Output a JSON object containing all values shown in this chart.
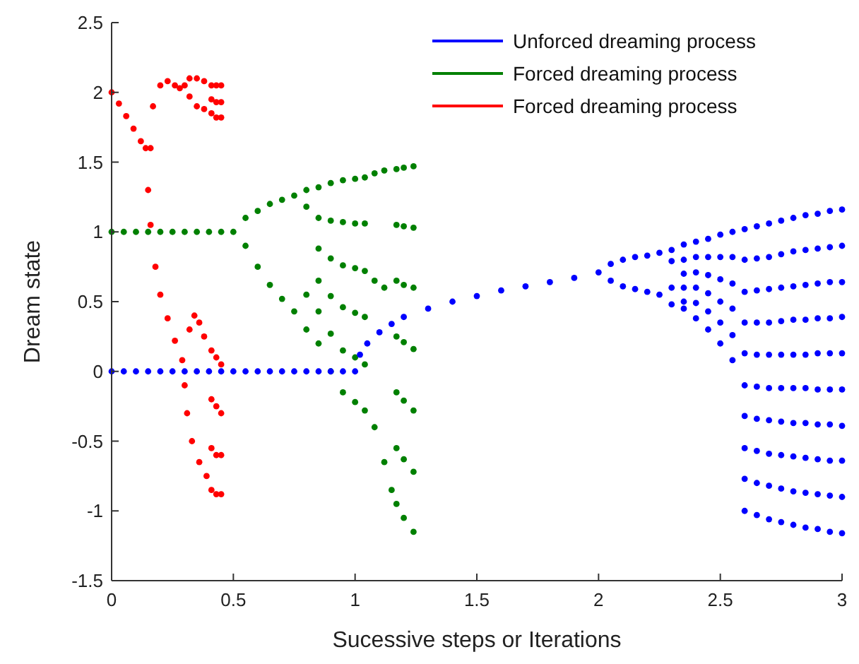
{
  "chart_data": {
    "type": "scatter",
    "xlabel": "Sucessive steps or Iterations",
    "ylabel": "Dream state",
    "xlim": [
      0,
      3
    ],
    "ylim": [
      -1.5,
      2.5
    ],
    "xticks": [
      0,
      0.5,
      1,
      1.5,
      2,
      2.5,
      3
    ],
    "yticks": [
      -1.5,
      -1,
      -0.5,
      0,
      0.5,
      1,
      1.5,
      2,
      2.5
    ],
    "grid": false,
    "legend": "top right",
    "marker": "circle",
    "series": [
      {
        "name": "Unforced dreaming process",
        "color": "#0000ff",
        "x": [
          0,
          0.05,
          0.1,
          0.15,
          0.2,
          0.25,
          0.3,
          0.35,
          0.4,
          0.45,
          0.5,
          0.55,
          0.6,
          0.65,
          0.7,
          0.75,
          0.8,
          0.85,
          0.9,
          0.95,
          1,
          1.02,
          1.05,
          1.1,
          1.15,
          1.2,
          1.3,
          1.4,
          1.5,
          1.6,
          1.7,
          1.8,
          1.9,
          2,
          2.05,
          2.05,
          2.1,
          2.1,
          2.15,
          2.15,
          2.2,
          2.2,
          2.25,
          2.25,
          2.3,
          2.3,
          2.3,
          2.3,
          2.35,
          2.35,
          2.35,
          2.35,
          2.35,
          2.35,
          2.4,
          2.4,
          2.4,
          2.4,
          2.4,
          2.4,
          2.45,
          2.45,
          2.45,
          2.45,
          2.45,
          2.45,
          2.5,
          2.5,
          2.5,
          2.5,
          2.5,
          2.5,
          2.55,
          2.55,
          2.55,
          2.55,
          2.55,
          2.55,
          2.6,
          2.6,
          2.6,
          2.6,
          2.6,
          2.6,
          2.6,
          2.6,
          2.6,
          2.6,
          2.65,
          2.65,
          2.65,
          2.65,
          2.65,
          2.65,
          2.65,
          2.65,
          2.65,
          2.65,
          2.7,
          2.7,
          2.7,
          2.7,
          2.7,
          2.7,
          2.7,
          2.7,
          2.7,
          2.7,
          2.75,
          2.75,
          2.75,
          2.75,
          2.75,
          2.75,
          2.75,
          2.75,
          2.75,
          2.75,
          2.8,
          2.8,
          2.8,
          2.8,
          2.8,
          2.8,
          2.8,
          2.8,
          2.8,
          2.8,
          2.85,
          2.85,
          2.85,
          2.85,
          2.85,
          2.85,
          2.85,
          2.85,
          2.85,
          2.85,
          2.9,
          2.9,
          2.9,
          2.9,
          2.9,
          2.9,
          2.9,
          2.9,
          2.9,
          2.9,
          2.95,
          2.95,
          2.95,
          2.95,
          2.95,
          2.95,
          2.95,
          2.95,
          2.95,
          2.95,
          3,
          3,
          3,
          3,
          3,
          3,
          3,
          3,
          3,
          3
        ],
        "values": [
          0,
          0,
          0,
          0,
          0,
          0,
          0,
          0,
          0,
          0,
          0,
          0,
          0,
          0,
          0,
          0,
          0,
          0,
          0,
          0,
          0,
          0.12,
          0.2,
          0.28,
          0.34,
          0.39,
          0.45,
          0.5,
          0.54,
          0.58,
          0.61,
          0.64,
          0.67,
          0.71,
          0.77,
          0.65,
          0.8,
          0.61,
          0.82,
          0.59,
          0.83,
          0.57,
          0.85,
          0.55,
          0.87,
          0.79,
          0.6,
          0.48,
          0.91,
          0.8,
          0.7,
          0.6,
          0.5,
          0.45,
          0.93,
          0.82,
          0.71,
          0.6,
          0.49,
          0.38,
          0.95,
          0.82,
          0.69,
          0.56,
          0.43,
          0.3,
          0.98,
          0.82,
          0.66,
          0.5,
          0.35,
          0.2,
          1,
          0.82,
          0.63,
          0.45,
          0.26,
          0.08,
          1.02,
          0.8,
          0.57,
          0.35,
          0.13,
          -0.1,
          -0.32,
          -0.55,
          -0.77,
          -1,
          1.04,
          0.81,
          0.58,
          0.35,
          0.12,
          -0.11,
          -0.34,
          -0.57,
          -0.8,
          -1.03,
          1.06,
          0.82,
          0.59,
          0.35,
          0.12,
          -0.12,
          -0.35,
          -0.59,
          -0.82,
          -1.06,
          1.08,
          0.84,
          0.6,
          0.36,
          0.12,
          -0.12,
          -0.36,
          -0.6,
          -0.84,
          -1.08,
          1.1,
          0.86,
          0.61,
          0.37,
          0.12,
          -0.12,
          -0.37,
          -0.61,
          -0.86,
          -1.1,
          1.12,
          0.87,
          0.62,
          0.37,
          0.12,
          -0.12,
          -0.37,
          -0.62,
          -0.87,
          -1.12,
          1.13,
          0.88,
          0.63,
          0.38,
          0.13,
          -0.13,
          -0.38,
          -0.63,
          -0.88,
          -1.13,
          1.15,
          0.89,
          0.64,
          0.38,
          0.13,
          -0.13,
          -0.38,
          -0.64,
          -0.89,
          -1.15,
          1.16,
          0.9,
          0.64,
          0.39,
          0.13,
          -0.13,
          -0.39,
          -0.64,
          -0.9,
          -1.16
        ]
      },
      {
        "name": "Forced dreaming process",
        "color": "#008000",
        "x": [
          0,
          0.05,
          0.1,
          0.15,
          0.2,
          0.25,
          0.3,
          0.35,
          0.4,
          0.45,
          0.5,
          0.55,
          0.55,
          0.6,
          0.6,
          0.65,
          0.65,
          0.7,
          0.7,
          0.75,
          0.75,
          0.8,
          0.8,
          0.8,
          0.8,
          0.85,
          0.85,
          0.85,
          0.85,
          0.85,
          0.85,
          0.9,
          0.9,
          0.9,
          0.9,
          0.9,
          0.9,
          0.95,
          0.95,
          0.95,
          0.95,
          0.95,
          0.95,
          1,
          1,
          1,
          1,
          1,
          1,
          1.04,
          1.04,
          1.04,
          1.04,
          1.04,
          1.04,
          1.08,
          1.08,
          1.08,
          1.12,
          1.12,
          1.12,
          1.15,
          1.17,
          1.17,
          1.17,
          1.17,
          1.17,
          1.17,
          1.17,
          1.2,
          1.2,
          1.2,
          1.2,
          1.2,
          1.2,
          1.2,
          1.24,
          1.24,
          1.24,
          1.24,
          1.24,
          1.24,
          1.24
        ],
        "values": [
          1,
          1,
          1,
          1,
          1,
          1,
          1,
          1,
          1,
          1,
          1,
          1.1,
          0.9,
          1.15,
          0.75,
          1.2,
          0.62,
          1.23,
          0.52,
          1.26,
          0.43,
          1.3,
          1.18,
          0.55,
          0.3,
          1.32,
          1.1,
          0.88,
          0.65,
          0.43,
          0.2,
          1.35,
          1.08,
          0.81,
          0.54,
          0.27,
          0,
          1.37,
          1.07,
          0.76,
          0.46,
          0.15,
          -0.15,
          1.38,
          1.06,
          0.74,
          0.42,
          0.1,
          -0.22,
          1.39,
          1.06,
          0.72,
          0.39,
          0.05,
          -0.28,
          1.42,
          0.65,
          -0.4,
          1.44,
          0.6,
          -0.65,
          -0.85,
          1.45,
          1.05,
          0.65,
          0.25,
          -0.15,
          -0.55,
          -0.95,
          1.46,
          1.04,
          0.62,
          0.21,
          -0.21,
          -0.63,
          -1.05,
          1.47,
          1.03,
          0.6,
          0.16,
          -0.28,
          -0.72,
          -1.15
        ]
      },
      {
        "name": "Forced dreaming process",
        "color": "#ff0000",
        "x": [
          0,
          0.03,
          0.06,
          0.09,
          0.12,
          0.14,
          0.15,
          0.16,
          0.17,
          0.2,
          0.23,
          0.26,
          0.28,
          0.3,
          0.32,
          0.35,
          0.38,
          0.32,
          0.35,
          0.38,
          0.16,
          0.18,
          0.2,
          0.23,
          0.26,
          0.29,
          0.3,
          0.31,
          0.33,
          0.36,
          0.39,
          0.32,
          0.34,
          0.36,
          0.38,
          0.41,
          0.41,
          0.41,
          0.41,
          0.41,
          0.41,
          0.41,
          0.43,
          0.43,
          0.43,
          0.43,
          0.43,
          0.43,
          0.43,
          0.45,
          0.45,
          0.45,
          0.45,
          0.45,
          0.45,
          0.45
        ],
        "values": [
          2,
          1.92,
          1.83,
          1.74,
          1.65,
          1.6,
          1.3,
          1.6,
          1.9,
          2.05,
          2.08,
          2.05,
          2.03,
          2.05,
          2.1,
          2.1,
          2.08,
          1.97,
          1.9,
          1.88,
          1.05,
          0.75,
          0.55,
          0.38,
          0.22,
          0.08,
          -0.1,
          -0.3,
          -0.5,
          -0.65,
          -0.75,
          0.3,
          0.4,
          0.35,
          0.25,
          2.05,
          1.95,
          1.85,
          0.15,
          -0.2,
          -0.55,
          -0.85,
          2.05,
          1.93,
          1.82,
          0.1,
          -0.25,
          -0.6,
          -0.88,
          2.05,
          1.93,
          1.82,
          0.05,
          -0.3,
          -0.6,
          -0.88
        ]
      }
    ]
  }
}
